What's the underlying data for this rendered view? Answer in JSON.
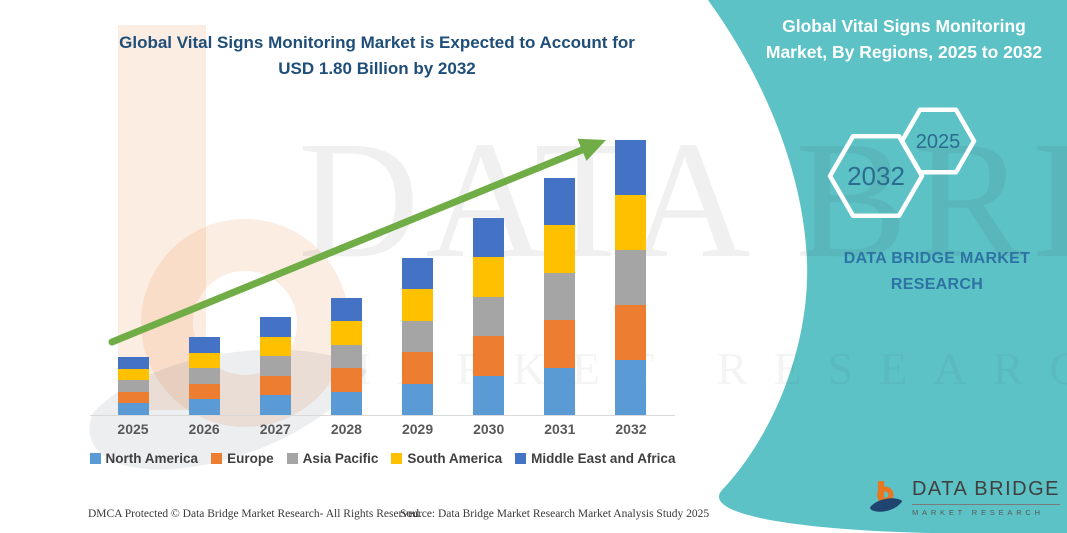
{
  "titles": {
    "chart_title_line1": "Global Vital Signs Monitoring Market is Expected to Account for",
    "chart_title_line2": "USD 1.80 Billion by 2032",
    "panel_title_line1": "Global Vital Signs Monitoring",
    "panel_title_line2": "Market, By Regions, 2025 to 2032"
  },
  "panel": {
    "hexagons": [
      {
        "label": "2032"
      },
      {
        "label": "2025"
      }
    ],
    "brand_line1": "DATA BRIDGE MARKET",
    "brand_line2": "RESEARCH"
  },
  "chart_data": {
    "type": "bar",
    "stacked": true,
    "title": "Global Vital Signs Monitoring Market is Expected to Account for USD 1.80 Billion by 2032",
    "unit": "USD Billion",
    "categories": [
      "2025",
      "2026",
      "2027",
      "2028",
      "2029",
      "2030",
      "2031",
      "2032"
    ],
    "series": [
      {
        "name": "North America",
        "color": "#5B9BD5",
        "values": [
          0.076,
          0.102,
          0.128,
          0.154,
          0.206,
          0.258,
          0.31,
          0.36
        ]
      },
      {
        "name": "Europe",
        "color": "#ED7D31",
        "values": [
          0.076,
          0.102,
          0.128,
          0.154,
          0.206,
          0.258,
          0.31,
          0.36
        ]
      },
      {
        "name": "Asia Pacific",
        "color": "#A5A5A5",
        "values": [
          0.076,
          0.102,
          0.128,
          0.154,
          0.206,
          0.258,
          0.31,
          0.36
        ]
      },
      {
        "name": "South America",
        "color": "#FFC000",
        "values": [
          0.076,
          0.102,
          0.128,
          0.154,
          0.206,
          0.258,
          0.31,
          0.36
        ]
      },
      {
        "name": "Middle East and Africa",
        "color": "#4472C4",
        "values": [
          0.076,
          0.102,
          0.128,
          0.154,
          0.206,
          0.258,
          0.31,
          0.36
        ]
      }
    ],
    "totals_by_year": [
      0.38,
      0.51,
      0.64,
      0.77,
      1.03,
      1.29,
      1.55,
      1.8
    ],
    "final_value_label": "USD 1.80 Billion by 2032",
    "ylim": [
      0,
      1.9
    ],
    "gridlines": false,
    "legend_position": "bottom",
    "trend_arrow": true
  },
  "watermark": {
    "text_line1": "DATA BRIDGE",
    "text_line2": "MARKET RESEARCH"
  },
  "logo": {
    "title": "DATA BRIDGE",
    "subtitle": "MARKET RESEARCH"
  },
  "footer": {
    "dmca": "DMCA Protected © Data Bridge Market Research-  All Rights Reserved.",
    "source": "Source: Data Bridge Market Research  Market Analysis Study 2025"
  },
  "colors": {
    "teal_panel": "#5CC2C6",
    "title_blue": "#1F4E79",
    "arrow_green": "#70AD47",
    "hexagon_year_text": "#2C6C8F",
    "brand_text": "#2D73A3",
    "axis_line": "#D9D9D9"
  }
}
